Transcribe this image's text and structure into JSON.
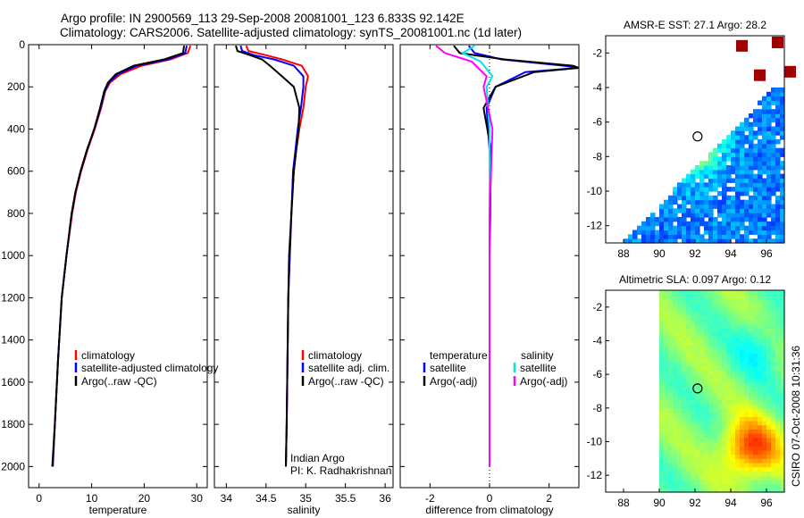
{
  "header": {
    "line1": "Argo profile: IN 2900569_113 29-Sep-2008 20081001_123 6.833S 92.142E",
    "line2": "Climatology: CARS2006. Satellite-adjusted climatology: synTS_20081001.nc (1d later)"
  },
  "stamp": "CSIRO 07-Oct-2008 10:31:36",
  "colors": {
    "climatology": "#ff0000",
    "satellite": "#0000ff",
    "argo": "#000000",
    "salinity_sat": "#00e5e5",
    "salinity_argo": "#ff00ff"
  },
  "chart_data": [
    {
      "type": "line",
      "xlabel": "temperature",
      "ylabel": "",
      "xlim": [
        -2,
        32
      ],
      "ylim": [
        2100,
        0
      ],
      "xticks": [
        0,
        10,
        20,
        30
      ],
      "yticks": [
        0,
        200,
        400,
        600,
        800,
        1000,
        1200,
        1400,
        1600,
        1800,
        2000
      ],
      "legend": [
        "climatology",
        "satellite-adjusted climatology",
        "Argo(..raw -QC)"
      ],
      "series": [
        {
          "name": "climatology",
          "color": "#ff0000",
          "x": [
            28.8,
            28.3,
            25.0,
            19.5,
            15.5,
            13.5,
            12.6,
            11.8,
            10.6,
            9.2,
            8.0,
            7.0,
            6.3,
            5.2,
            4.3,
            3.6,
            3.0,
            2.6
          ],
          "y": [
            5,
            40,
            70,
            100,
            140,
            180,
            220,
            300,
            400,
            500,
            600,
            700,
            800,
            1000,
            1200,
            1500,
            1800,
            2000
          ]
        },
        {
          "name": "satellite-adjusted climatology",
          "color": "#0000ff",
          "x": [
            28.1,
            27.8,
            24.5,
            18.6,
            15.0,
            13.3,
            12.5,
            11.7,
            10.5,
            9.1,
            7.9,
            6.9,
            6.2,
            5.2,
            4.3,
            3.6,
            3.0,
            2.6
          ],
          "y": [
            5,
            40,
            70,
            100,
            140,
            180,
            220,
            300,
            400,
            500,
            600,
            700,
            800,
            1000,
            1200,
            1500,
            1800,
            2000
          ]
        },
        {
          "name": "Argo(..raw -QC)",
          "color": "#000000",
          "x": [
            27.6,
            27.4,
            23.8,
            18.0,
            14.6,
            13.1,
            12.4,
            11.6,
            10.5,
            9.1,
            7.9,
            6.9,
            6.2,
            5.2,
            4.3,
            3.6,
            3.0,
            2.5
          ],
          "y": [
            5,
            40,
            70,
            100,
            140,
            180,
            220,
            300,
            400,
            500,
            600,
            700,
            800,
            1000,
            1200,
            1500,
            1800,
            2000
          ]
        }
      ]
    },
    {
      "type": "line",
      "xlabel": "salinity",
      "ylabel": "",
      "xlim": [
        33.85,
        36.1
      ],
      "ylim": [
        2100,
        0
      ],
      "xticks": [
        34,
        34.5,
        35,
        35.5,
        36
      ],
      "legend": [
        "climatology",
        "satellite adj. clim.",
        "Argo(..raw -QC)"
      ],
      "annotation": [
        "Indian Argo",
        "PI: K. Radhakrishnan"
      ],
      "series": [
        {
          "name": "climatology",
          "color": "#ff0000",
          "x": [
            34.25,
            34.28,
            34.5,
            34.7,
            34.95,
            35.03,
            35.0,
            34.97,
            34.92,
            34.88,
            34.85,
            34.82,
            34.8,
            34.78,
            34.77,
            34.76,
            34.75
          ],
          "y": [
            5,
            30,
            50,
            70,
            100,
            150,
            200,
            300,
            400,
            500,
            600,
            800,
            1000,
            1200,
            1500,
            1800,
            2000
          ]
        },
        {
          "name": "satellite adj. clim.",
          "color": "#0000ff",
          "x": [
            34.18,
            34.2,
            34.35,
            34.6,
            34.85,
            34.97,
            34.97,
            34.94,
            34.9,
            34.87,
            34.84,
            34.82,
            34.8,
            34.78,
            34.77,
            34.76,
            34.75
          ],
          "y": [
            5,
            30,
            50,
            70,
            100,
            150,
            200,
            300,
            400,
            500,
            600,
            800,
            1000,
            1200,
            1500,
            1800,
            2000
          ]
        },
        {
          "name": "Argo(..raw -QC)",
          "color": "#000000",
          "x": [
            34.12,
            34.14,
            34.3,
            34.45,
            34.55,
            34.7,
            34.85,
            34.92,
            34.91,
            34.88,
            34.85,
            34.82,
            34.79,
            34.78,
            34.77,
            34.76,
            34.75
          ],
          "y": [
            5,
            30,
            50,
            70,
            100,
            150,
            200,
            300,
            400,
            500,
            600,
            800,
            1000,
            1200,
            1500,
            1800,
            2000
          ]
        }
      ]
    },
    {
      "type": "line",
      "xlabel": "difference from climatology",
      "ylabel": "",
      "xlim": [
        -3,
        3
      ],
      "ylim": [
        2100,
        0
      ],
      "xticks": [
        -2,
        0,
        2
      ],
      "legend_temperature": {
        "title": "temperature",
        "items": [
          "satellite",
          "Argo(-adj)"
        ]
      },
      "legend_salinity": {
        "title": "salinity",
        "items": [
          "satellite",
          "Argo(-adj)"
        ]
      },
      "series": [
        {
          "name": "temperature satellite",
          "color": "#0000ff",
          "x": [
            -0.7,
            -0.5,
            0.4,
            2.5,
            3.0,
            1.2,
            0.2,
            -0.1,
            0.0,
            0.0,
            0.0,
            0.0
          ],
          "y": [
            5,
            40,
            70,
            100,
            110,
            130,
            200,
            300,
            500,
            1000,
            1500,
            2000
          ]
        },
        {
          "name": "temperature Argo(-adj)",
          "color": "#000000",
          "x": [
            -1.2,
            -1.0,
            0.5,
            2.8,
            3.0,
            1.5,
            0.2,
            -0.2,
            0.05,
            0.0,
            0.0,
            0.0
          ],
          "y": [
            5,
            40,
            70,
            100,
            110,
            130,
            200,
            300,
            500,
            1000,
            1500,
            2000
          ]
        },
        {
          "name": "salinity satellite",
          "color": "#00e5e5",
          "x": [
            -0.5,
            -0.9,
            -0.3,
            0.1,
            -0.1,
            0.0,
            0.0,
            0.0,
            0.0,
            0.0
          ],
          "y": [
            5,
            40,
            80,
            150,
            200,
            400,
            800,
            1200,
            1600,
            2000
          ]
        },
        {
          "name": "salinity Argo(-adj)",
          "color": "#ff00ff",
          "x": [
            -1.8,
            -1.5,
            -0.6,
            -0.1,
            -0.2,
            0.1,
            0.0,
            0.0,
            0.0,
            0.0
          ],
          "y": [
            5,
            40,
            80,
            150,
            200,
            400,
            800,
            1200,
            1600,
            2000
          ]
        }
      ]
    },
    {
      "type": "heatmap",
      "title": "AMSR-E SST: 27.1 Argo: 28.2",
      "xlim": [
        87,
        97
      ],
      "ylim": [
        -13,
        -1
      ],
      "xticks": [
        88,
        90,
        92,
        94,
        96
      ],
      "yticks": [
        -2,
        -4,
        -6,
        -8,
        -10,
        -12
      ],
      "argo_position": {
        "lon": 92.142,
        "lat": -6.833
      }
    },
    {
      "type": "heatmap",
      "title": "Altimetric SLA: 0.097 Argo: 0.12",
      "xlim": [
        87,
        97
      ],
      "ylim": [
        -13,
        -1
      ],
      "xticks": [
        88,
        90,
        92,
        94,
        96
      ],
      "yticks": [
        -2,
        -4,
        -6,
        -8,
        -10,
        -12
      ],
      "argo_position": {
        "lon": 92.142,
        "lat": -6.833
      }
    }
  ]
}
